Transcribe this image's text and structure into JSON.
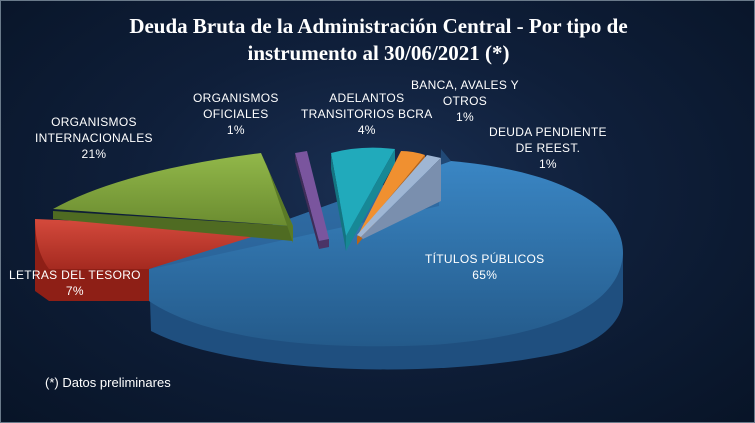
{
  "title": {
    "line1": "Deuda Bruta de la Administración Central - Por tipo de",
    "line2": "instrumento al 30/06/2021 (*)"
  },
  "footnote": "(*) Datos preliminares",
  "chart_data": {
    "type": "pie",
    "title": "Deuda Bruta de la Administración Central - Por tipo de instrumento al 30/06/2021 (*)",
    "slices": [
      {
        "label_lines": [
          "TÍTULOS PÚBLICOS"
        ],
        "pct_text": "65%",
        "value": 65,
        "color": "#2e6da4"
      },
      {
        "label_lines": [
          "LETRAS  DEL TESORO"
        ],
        "pct_text": "7%",
        "value": 7,
        "color": "#c0392b"
      },
      {
        "label_lines": [
          "ORGANISMOS",
          "INTERNACIONALES"
        ],
        "pct_text": "21%",
        "value": 21,
        "color": "#7da03c"
      },
      {
        "label_lines": [
          "ORGANISMOS",
          "OFICIALES"
        ],
        "pct_text": "1%",
        "value": 1,
        "color": "#6a4a8c"
      },
      {
        "label_lines": [
          "ADELANTOS",
          "TRANSITORIOS BCRA"
        ],
        "pct_text": "4%",
        "value": 4,
        "color": "#1fa3b3"
      },
      {
        "label_lines": [
          "BANCA,  AVALES  Y",
          "OTROS"
        ],
        "pct_text": "1%",
        "value": 1,
        "color": "#e8862b"
      },
      {
        "label_lines": [
          "DEUDA  PENDIENTE",
          "DE REEST."
        ],
        "pct_text": "1%",
        "value": 1,
        "color": "#8fa8c8"
      }
    ]
  }
}
